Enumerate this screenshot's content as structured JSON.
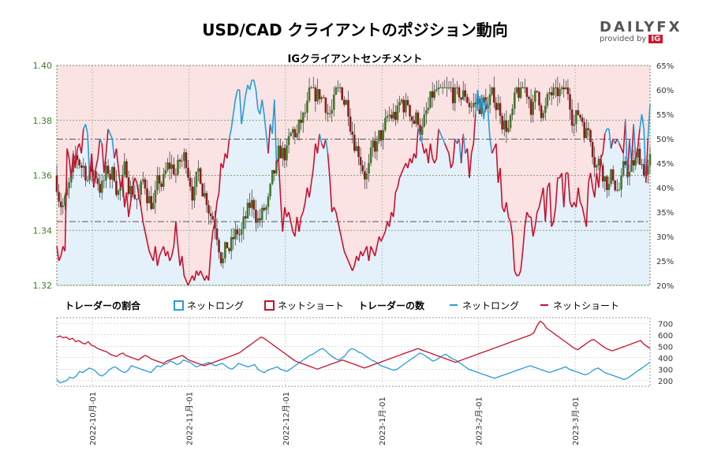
{
  "header": {
    "title": "USD/CAD クライアントのポジション動向",
    "subtitle": "IGクライアントセンチメント"
  },
  "logo": {
    "main": "DAILYFX",
    "sub": "provided by",
    "ig": "IG"
  },
  "legend": {
    "ratio_heading": "トレーダーの割合",
    "ratio_long": "ネットロング",
    "ratio_short": "ネットショート",
    "count_heading": "トレーダーの数",
    "count_long": "ネットロング",
    "count_short": "ネットショート"
  },
  "colors": {
    "long": "#2a9bd8",
    "short": "#c8102e",
    "long_fill": "#e4f1fa",
    "short_fill": "#fbe3e3",
    "candle_up": "#3f7a2a",
    "candle_down": "#8b1d1d",
    "price_axis": "#3f7a2a"
  },
  "chart_data": [
    {
      "type": "candlestick",
      "title": "IGクライアントセンチメント",
      "price_axis": {
        "side": "left",
        "range": [
          1.32,
          1.4
        ],
        "ticks": [
          "1.32",
          "1.34",
          "1.36",
          "1.38",
          "1.40"
        ]
      },
      "sentiment_axis": {
        "side": "right",
        "range": [
          20,
          65
        ],
        "ticks": [
          "20%",
          "25%",
          "30%",
          "35%",
          "40%",
          "45%",
          "50%",
          "55%",
          "60%",
          "65%"
        ]
      },
      "reference_levels": {
        "price": [
          1.3732,
          1.3432
        ]
      },
      "grid": true,
      "series": [
        {
          "name": "ネットロング",
          "axis": "sentiment",
          "values": [
            28,
            25,
            26,
            28,
            27,
            48,
            46,
            42,
            47,
            44,
            48,
            49,
            47,
            52,
            53,
            51,
            42,
            47,
            40,
            44,
            46,
            50,
            49,
            43,
            47,
            52,
            51,
            50,
            46,
            48,
            44,
            40,
            42,
            36,
            39,
            34,
            37,
            40,
            42,
            41,
            38,
            36,
            33,
            31,
            29,
            27,
            26,
            25,
            28,
            24,
            26,
            27,
            28,
            26,
            27,
            25,
            26,
            28,
            33,
            28,
            24,
            26,
            22,
            21,
            20,
            21,
            22,
            21,
            23,
            22,
            23,
            22,
            21,
            22,
            21,
            27,
            31,
            33,
            37,
            39,
            45,
            44,
            47,
            46,
            50,
            52,
            55,
            58,
            60,
            60,
            53,
            56,
            59,
            61,
            60,
            62,
            62,
            60,
            56,
            55,
            58,
            55,
            51,
            47,
            53,
            51,
            58,
            45,
            46,
            38,
            31,
            36,
            34,
            35,
            33,
            31,
            30,
            34,
            31,
            34,
            35,
            37,
            40,
            38,
            41,
            44,
            49,
            47,
            51,
            49,
            48,
            50,
            47,
            42,
            35,
            36,
            35,
            33,
            31,
            29,
            27,
            26,
            25,
            24,
            23,
            24,
            26,
            25,
            27,
            26,
            27,
            28,
            25,
            28,
            27,
            26,
            28,
            30,
            29,
            30,
            31,
            33,
            32,
            35,
            34,
            39,
            40,
            42,
            43,
            44,
            45,
            44,
            46,
            45,
            47,
            46,
            52,
            51,
            49,
            47,
            48,
            45,
            49,
            46,
            45,
            46,
            52,
            51,
            50,
            49,
            48,
            47,
            44,
            45,
            50,
            49,
            50,
            45,
            51,
            47,
            48,
            42,
            47,
            49,
            55,
            60,
            56,
            59,
            54,
            58,
            56,
            50,
            47,
            48,
            49,
            41,
            44,
            36,
            35,
            37,
            34,
            33,
            30,
            23,
            22,
            22,
            23,
            27,
            32,
            35,
            34,
            34,
            30,
            32,
            35,
            36,
            38,
            40,
            33,
            40,
            41,
            32,
            33,
            36,
            42,
            42,
            43,
            36,
            43,
            43,
            37,
            36,
            37,
            36,
            40,
            37,
            36,
            34,
            32,
            41,
            43,
            40,
            38,
            43,
            40,
            46,
            47,
            51,
            52,
            52,
            48,
            50,
            49,
            50,
            49,
            48,
            47,
            54,
            42,
            50,
            45,
            53,
            46,
            48,
            52,
            55,
            52,
            41,
            50,
            57
          ]
        },
        {
          "name": "ネットショート",
          "axis": "sentiment",
          "values": [
            72,
            75,
            74,
            72,
            73,
            52,
            54,
            58,
            53,
            56,
            52,
            51,
            53,
            48,
            47,
            49,
            58,
            53,
            60,
            56,
            54,
            50,
            51,
            57,
            53,
            48,
            49,
            50,
            54,
            52,
            56,
            60,
            58,
            64,
            61,
            66,
            63,
            60,
            58,
            59,
            62,
            64,
            67,
            69,
            71,
            73,
            74,
            75,
            72,
            76,
            74,
            73,
            72,
            74,
            73,
            75,
            74,
            72,
            67,
            72,
            76,
            74,
            78,
            79,
            80,
            79,
            78,
            79,
            77,
            78,
            77,
            78,
            79,
            78,
            79,
            73,
            69,
            67,
            63,
            61,
            55,
            56,
            53,
            54,
            50,
            48,
            45,
            42,
            40,
            40,
            47,
            44,
            41,
            39,
            40,
            38,
            38,
            40,
            44,
            45,
            42,
            45,
            49,
            53,
            47,
            49,
            42,
            55,
            54,
            62,
            69,
            64,
            66,
            65,
            67,
            69,
            70,
            66,
            69,
            66,
            65,
            63,
            60,
            62,
            59,
            56,
            51,
            53,
            49,
            51,
            52,
            50,
            53,
            58,
            65,
            64,
            65,
            67,
            69,
            71,
            73,
            74,
            75,
            76,
            77,
            76,
            74,
            75,
            73,
            74,
            73,
            72,
            75,
            72,
            73,
            74,
            72,
            70,
            71,
            70,
            69,
            67,
            68,
            65,
            66,
            61,
            60,
            58,
            57,
            56,
            55,
            56,
            54,
            55,
            53,
            54,
            48,
            49,
            51,
            53,
            52,
            55,
            51,
            54,
            55,
            54,
            48,
            49,
            50,
            51,
            52,
            53,
            56,
            55,
            50,
            51,
            50,
            55,
            49,
            53,
            52,
            58,
            53,
            51,
            45,
            40,
            44,
            41,
            46,
            42,
            44,
            50,
            53,
            52,
            51,
            59,
            56,
            64,
            65,
            63,
            66,
            67,
            70,
            77,
            78,
            78,
            77,
            73,
            68,
            65,
            66,
            66,
            70,
            68,
            65,
            64,
            62,
            60,
            67,
            60,
            59,
            68,
            67,
            64,
            58,
            58,
            57,
            64,
            57,
            57,
            63,
            64,
            63,
            64,
            60,
            63,
            64,
            66,
            68,
            59,
            57,
            60,
            62,
            57,
            60,
            54,
            53,
            49,
            48,
            48,
            52,
            50,
            51,
            50,
            51,
            52,
            53,
            46,
            58,
            50,
            55,
            47,
            54,
            52,
            48,
            45,
            48,
            59,
            50,
            43
          ]
        }
      ]
    },
    {
      "type": "line",
      "title": "トレーダーの数",
      "y_axis": {
        "side": "right",
        "range": [
          150,
          750
        ],
        "ticks": [
          "200",
          "300",
          "400",
          "500",
          "600",
          "700"
        ]
      },
      "x_axis": {
        "ticks": [
          "2022-10月-01",
          "2022-11月-01",
          "2022-12月-01",
          "2023-1月-01",
          "2023-2月-01",
          "2023-3月-01"
        ]
      },
      "grid": true,
      "series": [
        {
          "name": "ネットロング",
          "values": [
            210,
            180,
            190,
            200,
            230,
            220,
            240,
            280,
            270,
            290,
            310,
            300,
            280,
            250,
            240,
            260,
            290,
            310,
            320,
            300,
            280,
            270,
            290,
            330,
            320,
            310,
            300,
            290,
            280,
            270,
            300,
            330,
            320,
            340,
            350,
            370,
            360,
            340,
            350,
            380,
            370,
            360,
            340,
            320,
            330,
            340,
            350,
            360,
            340,
            330,
            340,
            350,
            330,
            310,
            300,
            320,
            350,
            340,
            330,
            320,
            330,
            340,
            300,
            280,
            270,
            290,
            300,
            310,
            320,
            300,
            290,
            280,
            300,
            320,
            340,
            360,
            380,
            400,
            420,
            430,
            450,
            470,
            480,
            460,
            430,
            410,
            390,
            380,
            400,
            420,
            460,
            480,
            470,
            450,
            440,
            420,
            400,
            380,
            370,
            350,
            330,
            320,
            310,
            300,
            290,
            300,
            320,
            340,
            360,
            380,
            400,
            420,
            440,
            430,
            410,
            390,
            370,
            380,
            400,
            420,
            430,
            410,
            390,
            380,
            360,
            340,
            320,
            300,
            290,
            280,
            270,
            260,
            250,
            240,
            230,
            220,
            230,
            240,
            250,
            260,
            270,
            280,
            290,
            300,
            310,
            320,
            330,
            320,
            310,
            300,
            290,
            280,
            270,
            280,
            290,
            300,
            310,
            320,
            300,
            290,
            280,
            270,
            260,
            250,
            260,
            280,
            300,
            310,
            290,
            270,
            260,
            250,
            240,
            230,
            220,
            210,
            220,
            240,
            260,
            280,
            300,
            320,
            340,
            360
          ]
        },
        {
          "name": "ネットショート",
          "values": [
            580,
            590,
            575,
            580,
            560,
            570,
            540,
            550,
            530,
            520,
            540,
            510,
            500,
            480,
            470,
            460,
            450,
            430,
            420,
            410,
            430,
            440,
            420,
            410,
            400,
            390,
            380,
            400,
            420,
            410,
            390,
            380,
            370,
            360,
            350,
            370,
            380,
            390,
            400,
            410,
            420,
            400,
            380,
            370,
            360,
            350,
            340,
            330,
            340,
            350,
            360,
            370,
            380,
            390,
            400,
            410,
            420,
            430,
            440,
            460,
            480,
            500,
            520,
            540,
            560,
            580,
            570,
            550,
            530,
            510,
            490,
            470,
            450,
            430,
            410,
            390,
            370,
            360,
            350,
            340,
            330,
            320,
            310,
            300,
            310,
            320,
            330,
            340,
            350,
            360,
            370,
            380,
            370,
            360,
            350,
            340,
            330,
            320,
            310,
            320,
            330,
            340,
            350,
            360,
            370,
            380,
            390,
            400,
            410,
            420,
            430,
            440,
            450,
            460,
            470,
            480,
            470,
            460,
            450,
            440,
            430,
            420,
            410,
            400,
            390,
            380,
            370,
            360,
            370,
            380,
            390,
            400,
            410,
            420,
            430,
            440,
            450,
            460,
            470,
            480,
            490,
            500,
            510,
            520,
            530,
            540,
            550,
            560,
            570,
            580,
            590,
            600,
            620,
            680,
            720,
            700,
            660,
            640,
            620,
            600,
            580,
            560,
            540,
            520,
            500,
            480,
            470,
            490,
            510,
            530,
            550,
            560,
            540,
            520,
            500,
            480,
            470,
            460,
            470,
            480,
            490,
            500,
            510,
            520,
            530,
            540,
            550,
            520,
            500,
            480
          ]
        }
      ]
    }
  ]
}
